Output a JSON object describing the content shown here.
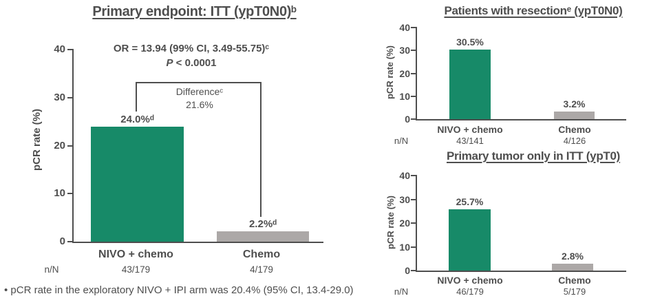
{
  "colors": {
    "bar_green": "#178A68",
    "bar_gray": "#ACA8A7",
    "text": "#4E4E4E"
  },
  "footnote": "• pCR rate in the exploratory NIVO + IPI arm was 20.4% (95% CI, 13.4-29.0)",
  "chart_data": [
    {
      "type": "bar",
      "title": "Primary endpoint: ITT (ypT0N0)ᵇ",
      "stats_line1": "OR = 13.94 (99% CI, 3.49-55.75)ᶜ",
      "stats_line2": "P < 0.0001",
      "difference_label": "Differenceᶜ",
      "difference_value": "21.6%",
      "ylabel": "pCR rate (%)",
      "ylim": [
        0,
        40
      ],
      "grid": "off",
      "yticks": [
        "40",
        "30",
        "20",
        "10",
        "0"
      ],
      "categories": [
        "NIVO + chemo",
        "Chemo"
      ],
      "values": [
        24.0,
        2.2
      ],
      "bar_labels": [
        "24.0%ᵈ",
        "2.2%ᵈ"
      ],
      "n_N_label": "n/N",
      "n_N": [
        "43/179",
        "4/179"
      ]
    },
    {
      "type": "bar",
      "title": "Patients with resectionᵉ (ypT0N0)",
      "ylabel": "pCR rate (%)",
      "ylim": [
        0,
        40
      ],
      "grid": "off",
      "yticks": [
        "40",
        "30",
        "20",
        "10",
        "0"
      ],
      "categories": [
        "NIVO + chemo",
        "Chemo"
      ],
      "values": [
        30.5,
        3.2
      ],
      "bar_labels": [
        "30.5%",
        "3.2%"
      ],
      "n_N_label": "n/N",
      "n_N": [
        "43/141",
        "4/126"
      ]
    },
    {
      "type": "bar",
      "title": "Primary tumor only in ITT (ypT0)",
      "ylabel": "pCR rate (%)",
      "ylim": [
        0,
        40
      ],
      "grid": "off",
      "yticks": [
        "40",
        "30",
        "20",
        "10",
        "0"
      ],
      "categories": [
        "NIVO + chemo",
        "Chemo"
      ],
      "values": [
        25.7,
        2.8
      ],
      "bar_labels": [
        "25.7%",
        "2.8%"
      ],
      "n_N_label": "n/N",
      "n_N": [
        "46/179",
        "5/179"
      ]
    }
  ]
}
